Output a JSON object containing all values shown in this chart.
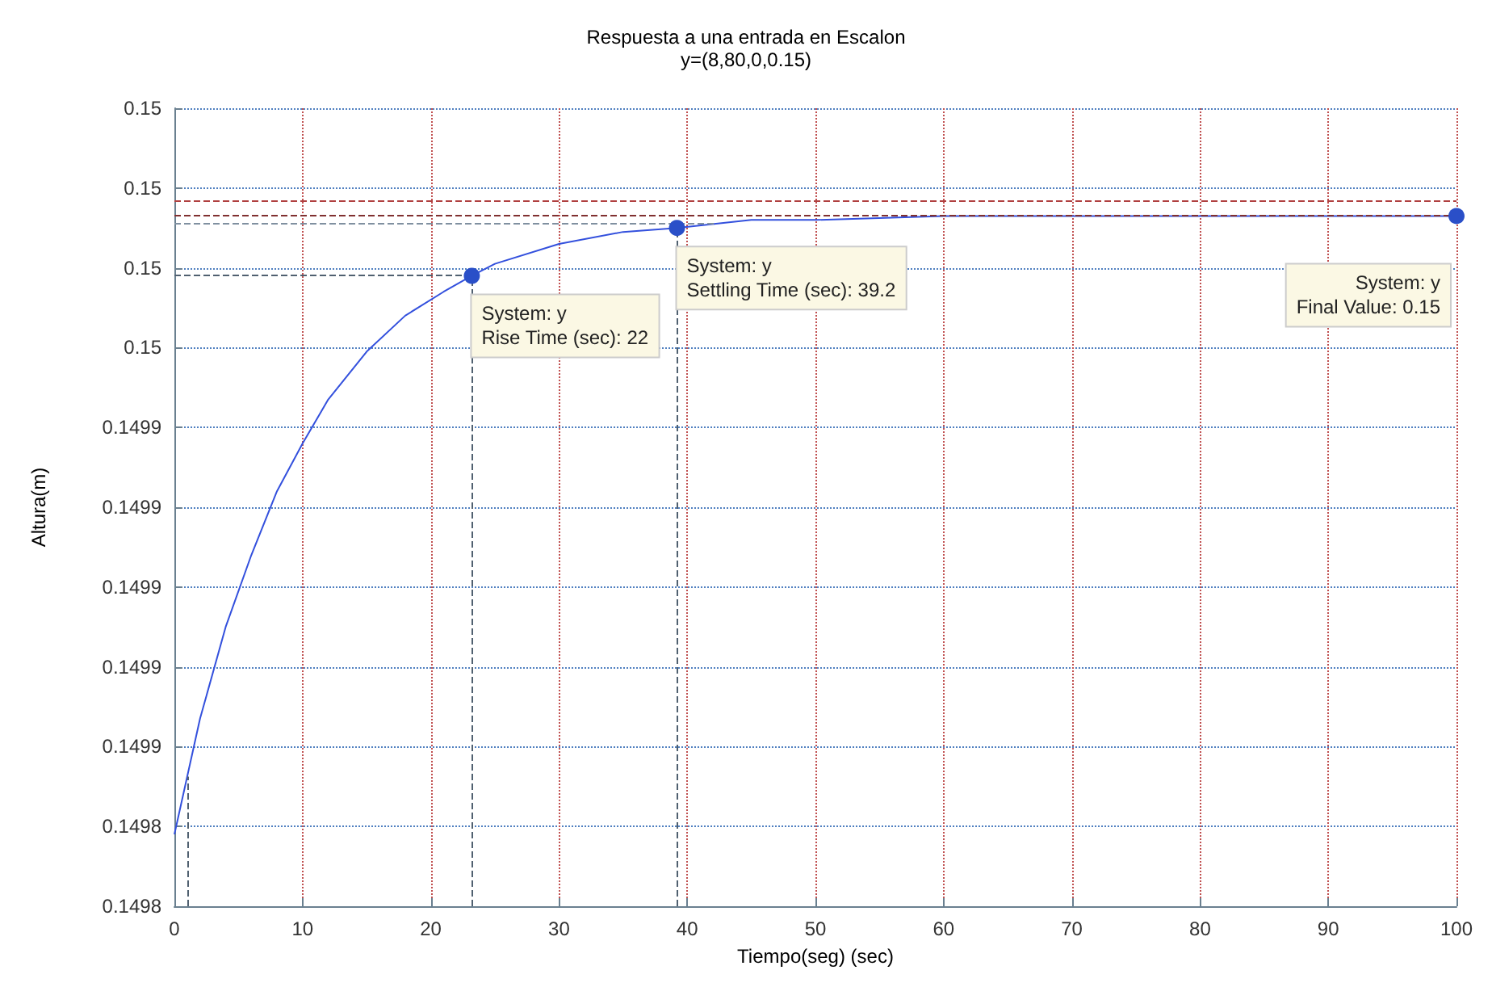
{
  "chart_data": {
    "type": "line",
    "title": "Respuesta a una entrada en Escalon",
    "subtitle": "y=(8,80,0,0.15)",
    "xlabel": "Tiempo(seg) (sec)",
    "ylabel": "Altura(m)",
    "x": [
      0,
      2,
      4,
      6,
      8,
      10,
      12,
      15,
      18,
      21,
      23.2,
      25,
      30,
      35,
      39.2,
      45,
      50,
      60,
      70,
      80,
      100
    ],
    "series": [
      {
        "color": "#3350dd",
        "values": [
          0.149838,
          0.149867,
          0.14989,
          0.149908,
          0.149924,
          0.149936,
          0.149947,
          0.149959,
          0.149968,
          0.149974,
          0.149978,
          0.149981,
          0.149986,
          0.149989,
          0.14999,
          0.149992,
          0.149992,
          0.149993,
          0.149993,
          0.149993,
          0.149993
        ]
      }
    ],
    "xlim": [
      0,
      100
    ],
    "xticks": [
      0,
      10,
      20,
      30,
      40,
      50,
      60,
      70,
      80,
      90,
      100
    ],
    "ylim": [
      0.14982,
      0.15002
    ],
    "yticks": [
      {
        "value": 0.14982,
        "label": "0.1498"
      },
      {
        "value": 0.14984,
        "label": "0.1498"
      },
      {
        "value": 0.14986,
        "label": "0.1499"
      },
      {
        "value": 0.14988,
        "label": "0.1499"
      },
      {
        "value": 0.1499,
        "label": "0.1499"
      },
      {
        "value": 0.14992,
        "label": "0.1499"
      },
      {
        "value": 0.14994,
        "label": "0.1499"
      },
      {
        "value": 0.14996,
        "label": "0.15"
      },
      {
        "value": 0.14998,
        "label": "0.15"
      },
      {
        "value": 0.15,
        "label": "0.15"
      },
      {
        "value": 0.15002,
        "label": "0.15"
      }
    ],
    "grid": true,
    "marker": "none",
    "line_style": "solid",
    "ref_lines": [
      {
        "axis": "y",
        "value": 0.149997,
        "color": "#b04040",
        "line_style": "dashed"
      },
      {
        "axis": "y",
        "value": 0.149993,
        "color": "#803030",
        "line_style": "dashed"
      },
      {
        "axis": "y",
        "value": 0.149991,
        "color": "#8090a0",
        "line_style": "dashed"
      },
      {
        "axis": "y",
        "value": 0.149978,
        "color": "#506070",
        "line_style": "dashed"
      },
      {
        "axis": "x",
        "value": 1,
        "color": "#506070",
        "line_style": "dashed"
      },
      {
        "axis": "x",
        "value": 23.2,
        "color": "#506070",
        "line_style": "dashed"
      },
      {
        "axis": "x",
        "value": 39.2,
        "color": "#506070",
        "line_style": "dashed"
      }
    ],
    "annotations": [
      {
        "text": "System: y\nRise Time (sec): 22",
        "x": 23.2,
        "y": 0.149978
      },
      {
        "text": "System: y\nSettling Time (sec): 39.2",
        "x": 39.2,
        "y": 0.14999
      },
      {
        "text": "System: y\nFinal Value: 0.15",
        "x": 100,
        "y": 0.149993
      }
    ]
  }
}
